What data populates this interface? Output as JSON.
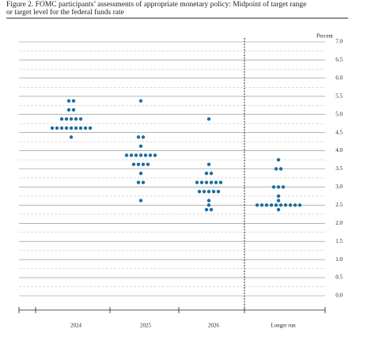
{
  "chart_data": {
    "type": "dot",
    "title": "Figure 2.  FOMC participants’ assessments of appropriate monetary policy:  Midpoint of target range",
    "subtitle": "or target level for the federal funds rate",
    "y_unit_label": "Percent",
    "categories": [
      "2024",
      "2025",
      "2026",
      "Longer run"
    ],
    "color": "#1b6f9e",
    "values": [
      [
        5.375,
        5.375,
        5.125,
        5.125,
        4.875,
        4.875,
        4.875,
        4.875,
        4.875,
        4.625,
        4.625,
        4.625,
        4.625,
        4.625,
        4.625,
        4.625,
        4.625,
        4.625,
        4.375
      ],
      [
        5.375,
        4.375,
        4.375,
        4.125,
        3.875,
        3.875,
        3.875,
        3.875,
        3.875,
        3.875,
        3.875,
        3.625,
        3.625,
        3.625,
        3.625,
        3.375,
        3.125,
        3.125,
        2.625
      ],
      [
        4.875,
        3.625,
        3.375,
        3.375,
        3.125,
        3.125,
        3.125,
        3.125,
        3.125,
        3.125,
        2.875,
        2.875,
        2.875,
        2.875,
        2.875,
        2.625,
        2.5,
        2.375,
        2.375
      ],
      [
        3.75,
        3.5,
        3.5,
        3.0,
        3.0,
        3.0,
        2.75,
        2.625,
        2.5,
        2.5,
        2.5,
        2.5,
        2.5,
        2.5,
        2.5,
        2.5,
        2.5,
        2.5,
        2.375
      ]
    ],
    "ylim": [
      0,
      7.0
    ],
    "yticks": [
      {
        "value": 0,
        "label": "0.0"
      },
      0.5,
      {
        "value": 1,
        "label": "1.0"
      },
      1.5,
      {
        "value": 2,
        "label": "2.0"
      },
      2.5,
      {
        "value": 3,
        "label": "3.0"
      },
      3.5,
      {
        "value": 4,
        "label": "4.0"
      },
      4.5,
      {
        "value": 5,
        "label": "5.0"
      },
      5.5,
      {
        "value": 6,
        "label": "6.0"
      },
      6.5,
      {
        "value": 7,
        "label": "7.0"
      }
    ],
    "yticks_minor": [
      0.25,
      0.75,
      1.25,
      1.75,
      2.25,
      2.75,
      3.25,
      3.75,
      4.25,
      4.75,
      5.25,
      5.75,
      6.25,
      6.75
    ],
    "grid": true
  }
}
